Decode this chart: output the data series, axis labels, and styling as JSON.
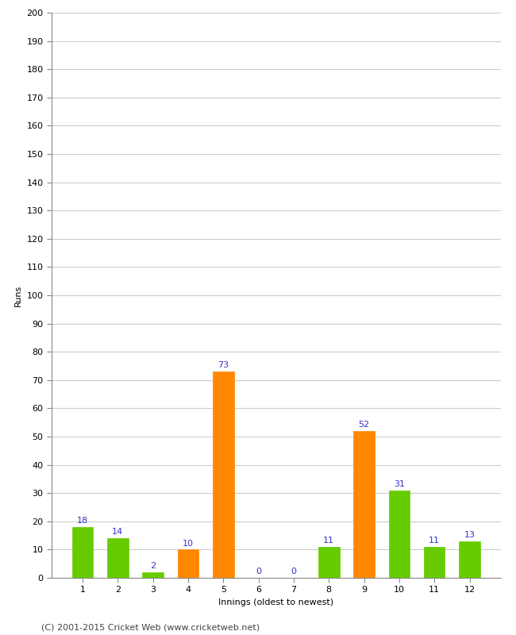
{
  "innings": [
    1,
    2,
    3,
    4,
    5,
    6,
    7,
    8,
    9,
    10,
    11,
    12
  ],
  "values": [
    18,
    14,
    2,
    10,
    73,
    0,
    0,
    11,
    52,
    31,
    11,
    13
  ],
  "colors": [
    "#66cc00",
    "#66cc00",
    "#66cc00",
    "#ff8800",
    "#ff8800",
    "#66cc00",
    "#66cc00",
    "#66cc00",
    "#ff8800",
    "#66cc00",
    "#66cc00",
    "#66cc00"
  ],
  "xlabel": "Innings (oldest to newest)",
  "ylabel": "Runs",
  "ylim": [
    0,
    200
  ],
  "yticks": [
    0,
    10,
    20,
    30,
    40,
    50,
    60,
    70,
    80,
    90,
    100,
    110,
    120,
    130,
    140,
    150,
    160,
    170,
    180,
    190,
    200
  ],
  "label_color": "#3333cc",
  "label_fontsize": 8,
  "axis_label_fontsize": 8,
  "tick_fontsize": 8,
  "background_color": "#ffffff",
  "grid_color": "#cccccc",
  "footer": "(C) 2001-2015 Cricket Web (www.cricketweb.net)",
  "footer_fontsize": 8
}
